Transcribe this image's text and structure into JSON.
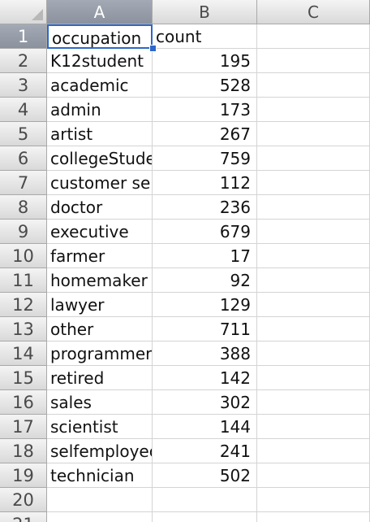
{
  "columns": [
    "A",
    "B",
    "C"
  ],
  "row_numbers": [
    "1",
    "2",
    "3",
    "4",
    "5",
    "6",
    "7",
    "8",
    "9",
    "10",
    "11",
    "12",
    "13",
    "14",
    "15",
    "16",
    "17",
    "18",
    "19",
    "20",
    "21"
  ],
  "header_row": {
    "a": "occupation",
    "b": "count"
  },
  "rows": [
    {
      "a": "K12student",
      "b": "195"
    },
    {
      "a": "academic",
      "b": "528"
    },
    {
      "a": "admin",
      "b": "173"
    },
    {
      "a": "artist",
      "b": "267"
    },
    {
      "a": "collegeStude",
      "b": "759"
    },
    {
      "a": "customer ser",
      "b": "112"
    },
    {
      "a": "doctor",
      "b": "236"
    },
    {
      "a": "executive",
      "b": "679"
    },
    {
      "a": "farmer",
      "b": "17"
    },
    {
      "a": "homemaker",
      "b": "92"
    },
    {
      "a": "lawyer",
      "b": "129"
    },
    {
      "a": "other",
      "b": "711"
    },
    {
      "a": "programmer",
      "b": "388"
    },
    {
      "a": "retired",
      "b": "142"
    },
    {
      "a": "sales",
      "b": "302"
    },
    {
      "a": "scientist",
      "b": "144"
    },
    {
      "a": "selfemployec",
      "b": "241"
    },
    {
      "a": "technician",
      "b": "502"
    }
  ],
  "selection": {
    "active_cell": "A1",
    "color": "#2d67c9"
  }
}
